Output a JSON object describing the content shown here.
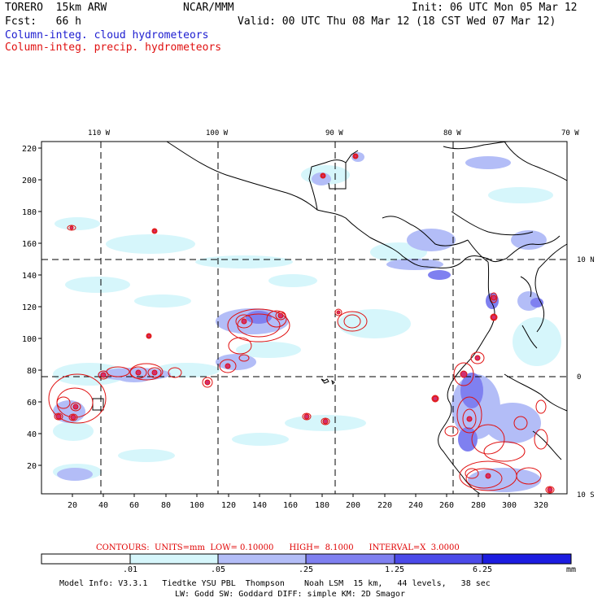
{
  "header": {
    "model": "TORERO  15km ARW",
    "org": "NCAR/MMM",
    "init": "Init: 06 UTC Mon 05 Mar 12",
    "fcst": "Fcst:   66 h",
    "valid": "Valid: 00 UTC Thu 08 Mar 12 (18 CST Wed 07 Mar 12)",
    "line_blue": "Column-integ. cloud hydrometeors",
    "line_red": "Column-integ. precip. hydrometeors"
  },
  "axes": {
    "lon_labels": [
      "110 W",
      "100 W",
      "90 W",
      "80 W",
      "70 W"
    ],
    "lat_labels": [
      "10 N",
      "0",
      "10 S"
    ],
    "y_ticks": [
      "220",
      "200",
      "180",
      "160",
      "140",
      "120",
      "100",
      "80",
      "60",
      "40",
      "20"
    ],
    "x_ticks": [
      "20",
      "40",
      "60",
      "80",
      "100",
      "120",
      "140",
      "160",
      "180",
      "200",
      "220",
      "240",
      "260",
      "280",
      "300",
      "320"
    ]
  },
  "contour_info": "CONTOURS:  UNITS=mm  LOW= 0.10000      HIGH=  8.1000      INTERVAL=X  3.0000",
  "colorbar": {
    "labels": [
      ".01",
      ".05",
      ".25",
      "1.25",
      "6.25"
    ],
    "unit": "mm",
    "colors": [
      "#ffffff",
      "#d6f6fb",
      "#b3bdf7",
      "#7f80f0",
      "#4b4ae9",
      "#1c1ce0"
    ]
  },
  "footer": {
    "line1": "Model Info: V3.3.1   Tiedtke YSU PBL  Thompson    Noah LSM  15 km,   44 levels,   38 sec",
    "line2": "LW: Godd SW: Goddard DIFF: simple KM: 2D Smagor"
  },
  "colors": {
    "cloud_light": "#d6f6fb",
    "cloud_mid": "#b3bdf7",
    "cloud_dark": "#7f80f0",
    "precip_contour": "#e01010",
    "grid": "#000000"
  }
}
